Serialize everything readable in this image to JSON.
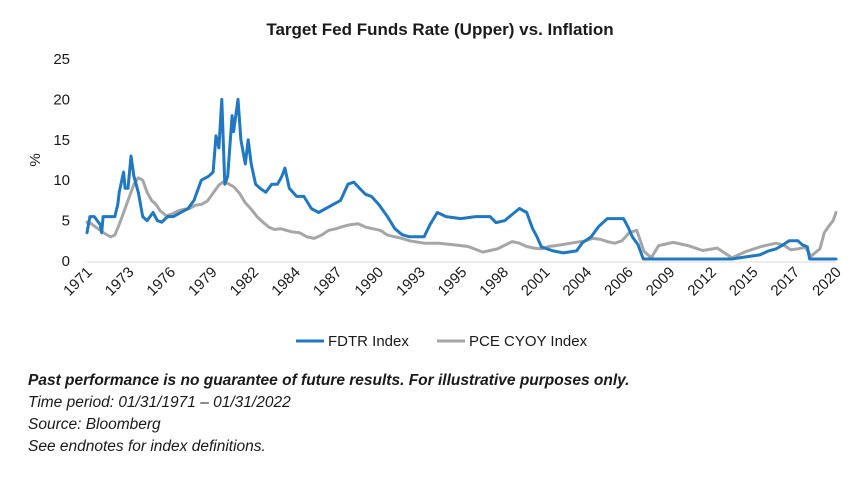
{
  "chart_data": {
    "type": "line",
    "title": "Target Fed Funds Rate (Upper) vs. Inflation",
    "ylabel": "%",
    "xlabel": "",
    "ylim": [
      0,
      25
    ],
    "yticks": [
      0,
      5,
      10,
      15,
      20,
      25
    ],
    "xlim": [
      1971.0,
      2022.1
    ],
    "xticks": [
      "1971",
      "1973",
      "1976",
      "1979",
      "1982",
      "1984",
      "1987",
      "1990",
      "1993",
      "1995",
      "1998",
      "2001",
      "2004",
      "2006",
      "2009",
      "2012",
      "2015",
      "2017",
      "2020"
    ],
    "grid": false,
    "legend_position": "bottom",
    "colors": {
      "FDTR Index": "#1f78c1",
      "PCE CYOY Index": "#a6a6a6"
    },
    "series": [
      {
        "name": "FDTR Index",
        "color": "#1f78c1",
        "x": [
          1971.0,
          1971.2,
          1971.5,
          1971.9,
          1972.0,
          1972.1,
          1972.6,
          1972.9,
          1973.1,
          1973.2,
          1973.5,
          1973.6,
          1973.8,
          1974.0,
          1974.2,
          1974.5,
          1974.8,
          1975.1,
          1975.5,
          1975.8,
          1976.1,
          1976.5,
          1976.9,
          1977.4,
          1977.9,
          1978.3,
          1978.8,
          1979.3,
          1979.6,
          1979.8,
          1980.0,
          1980.2,
          1980.4,
          1980.6,
          1980.9,
          1981.0,
          1981.3,
          1981.5,
          1981.8,
          1982.0,
          1982.2,
          1982.5,
          1982.8,
          1983.2,
          1983.6,
          1984.0,
          1984.3,
          1984.5,
          1984.8,
          1985.3,
          1985.8,
          1986.3,
          1986.8,
          1987.3,
          1987.8,
          1988.3,
          1988.8,
          1989.2,
          1989.6,
          1990.0,
          1990.4,
          1990.9,
          1991.5,
          1992.0,
          1992.5,
          1993.0,
          1994.0,
          1994.4,
          1994.9,
          1995.5,
          1996.5,
          1997.5,
          1998.5,
          1998.9,
          1999.5,
          2000.0,
          2000.5,
          2001.0,
          2001.4,
          2001.7,
          2002.0,
          2002.8,
          2003.5,
          2004.4,
          2004.8,
          2005.4,
          2005.9,
          2006.5,
          2007.0,
          2007.6,
          2007.9,
          2008.2,
          2008.6,
          2008.95,
          2009.5,
          2012.0,
          2015.0,
          2015.9,
          2016.9,
          2017.5,
          2018.0,
          2018.5,
          2018.9,
          2019.5,
          2019.8,
          2020.15,
          2020.3,
          2021.0,
          2022.1
        ],
        "values": [
          3.5,
          5.5,
          5.5,
          4.5,
          3.5,
          5.5,
          5.5,
          5.5,
          7.0,
          8.5,
          11.0,
          9.0,
          9.0,
          13.0,
          10.5,
          8.5,
          5.5,
          5.0,
          6.0,
          5.0,
          4.8,
          5.5,
          5.5,
          6.0,
          6.5,
          7.5,
          10.0,
          10.5,
          11.0,
          15.5,
          14.0,
          20.0,
          9.5,
          10.5,
          18.0,
          16.0,
          20.0,
          15.0,
          12.0,
          15.0,
          12.0,
          9.5,
          9.0,
          8.5,
          9.5,
          9.5,
          10.5,
          11.5,
          9.0,
          8.0,
          8.0,
          6.5,
          6.0,
          6.5,
          7.0,
          7.5,
          9.5,
          9.75,
          9.0,
          8.25,
          8.0,
          7.0,
          5.5,
          4.0,
          3.25,
          3.0,
          3.0,
          4.5,
          6.0,
          5.5,
          5.25,
          5.5,
          5.5,
          4.75,
          5.0,
          5.75,
          6.5,
          6.0,
          4.0,
          3.0,
          1.75,
          1.25,
          1.0,
          1.25,
          2.25,
          3.0,
          4.25,
          5.25,
          5.25,
          5.25,
          4.25,
          3.0,
          2.0,
          0.25,
          0.25,
          0.25,
          0.25,
          0.5,
          0.75,
          1.25,
          1.5,
          2.0,
          2.5,
          2.5,
          2.0,
          1.75,
          0.25,
          0.25,
          0.25
        ]
      },
      {
        "name": "PCE CYOY Index",
        "color": "#a6a6a6",
        "x": [
          1971.0,
          1971.3,
          1971.6,
          1971.9,
          1972.2,
          1972.6,
          1972.9,
          1973.2,
          1973.6,
          1973.9,
          1974.2,
          1974.5,
          1974.8,
          1975.1,
          1975.4,
          1975.7,
          1976.0,
          1976.4,
          1976.8,
          1977.2,
          1977.6,
          1978.0,
          1978.4,
          1978.8,
          1979.2,
          1979.6,
          1980.0,
          1980.3,
          1980.6,
          1981.0,
          1981.4,
          1981.8,
          1982.2,
          1982.6,
          1983.0,
          1983.4,
          1983.8,
          1984.2,
          1984.6,
          1985.0,
          1985.5,
          1986.0,
          1986.5,
          1987.0,
          1987.5,
          1988.0,
          1988.5,
          1989.0,
          1989.5,
          1990.0,
          1990.5,
          1991.0,
          1991.5,
          1992.0,
          1992.5,
          1993.0,
          1994.0,
          1995.0,
          1996.0,
          1997.0,
          1998.0,
          1999.0,
          2000.0,
          2000.5,
          2001.0,
          2001.5,
          2002.0,
          2002.5,
          2003.0,
          2004.0,
          2005.0,
          2005.5,
          2006.0,
          2006.5,
          2007.0,
          2007.5,
          2008.0,
          2008.5,
          2009.0,
          2009.5,
          2010.0,
          2011.0,
          2012.0,
          2013.0,
          2014.0,
          2015.0,
          2016.0,
          2017.0,
          2018.0,
          2018.5,
          2019.0,
          2019.5,
          2020.0,
          2020.4,
          2020.8,
          2021.0,
          2021.3,
          2021.6,
          2021.9,
          2022.1
        ],
        "values": [
          4.8,
          4.6,
          4.2,
          3.8,
          3.4,
          3.0,
          3.2,
          4.5,
          6.5,
          8.0,
          9.5,
          10.3,
          10.0,
          8.5,
          7.5,
          7.0,
          6.2,
          5.6,
          5.8,
          6.2,
          6.4,
          6.5,
          6.9,
          7.0,
          7.4,
          8.4,
          9.4,
          9.8,
          9.6,
          9.2,
          8.4,
          7.2,
          6.4,
          5.5,
          4.8,
          4.2,
          3.9,
          4.0,
          3.8,
          3.6,
          3.5,
          3.0,
          2.8,
          3.2,
          3.8,
          4.0,
          4.3,
          4.5,
          4.6,
          4.2,
          4.0,
          3.8,
          3.2,
          3.0,
          2.8,
          2.5,
          2.2,
          2.2,
          2.0,
          1.8,
          1.1,
          1.5,
          2.4,
          2.2,
          1.8,
          1.6,
          1.5,
          1.8,
          1.9,
          2.2,
          2.5,
          2.8,
          2.7,
          2.4,
          2.2,
          2.5,
          3.5,
          3.8,
          1.2,
          0.4,
          1.9,
          2.3,
          1.9,
          1.3,
          1.6,
          0.4,
          1.2,
          1.8,
          2.2,
          2.0,
          1.4,
          1.5,
          1.7,
          0.6,
          1.2,
          1.5,
          3.5,
          4.3,
          5.0,
          6.0
        ]
      }
    ]
  },
  "notes": {
    "disclaimer": "Past performance is no guarantee of future results. For illustrative purposes only.",
    "time_period": "Time period: 01/31/1971 – 01/31/2022",
    "source": "Source: Bloomberg",
    "endnotes": "See endnotes for index definitions."
  }
}
